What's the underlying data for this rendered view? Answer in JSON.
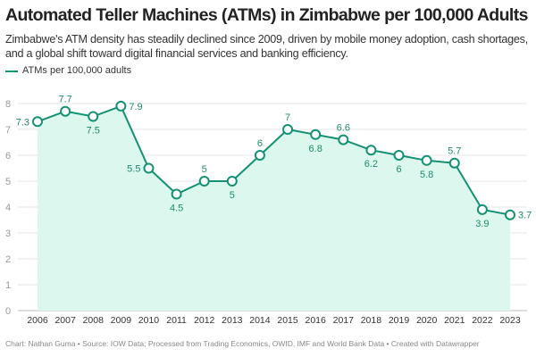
{
  "title": "Automated Teller Machines (ATMs) in Zimbabwe per 100,000 Adults",
  "subtitle": "Zimbabwe's ATM density has steadily declined since 2009, driven by mobile money adoption, cash shortages, and a global shift toward digital financial services and banking efficiency.",
  "footer": "Chart: Nathan Guma  • Source: IOW Data; Processed from Trading Economics, OWID, IMF and World Bank Data • Created with Datawrapper",
  "colors": {
    "line": "#139173",
    "fill": "#dcf8ee",
    "grid": "#e6e6e6"
  },
  "chart_data": {
    "type": "area",
    "x": [
      "2006",
      "2007",
      "2008",
      "2009",
      "2010",
      "2011",
      "2012",
      "2013",
      "2014",
      "2015",
      "2016",
      "2017",
      "2018",
      "2019",
      "2020",
      "2021",
      "2022",
      "2023"
    ],
    "series": [
      {
        "name": "ATMs per 100,000 adults",
        "values": [
          7.3,
          7.7,
          7.5,
          7.9,
          5.5,
          4.5,
          5,
          5,
          6,
          7,
          6.8,
          6.6,
          6.2,
          6,
          5.8,
          5.7,
          3.9,
          3.7
        ]
      }
    ],
    "data_labels": [
      "7.3",
      "7.7",
      "7.5",
      "7.9",
      "5.5",
      "4.5",
      "5",
      "5",
      "6",
      "7",
      "6.8",
      "6.6",
      "6.2",
      "6",
      "5.8",
      "5.7",
      "3.9",
      "3.7"
    ],
    "yticks": [
      "0",
      "1",
      "2",
      "3",
      "4",
      "5",
      "6",
      "7",
      "8"
    ],
    "ylim": [
      0,
      8
    ],
    "grid": true,
    "legend": "top-left"
  }
}
